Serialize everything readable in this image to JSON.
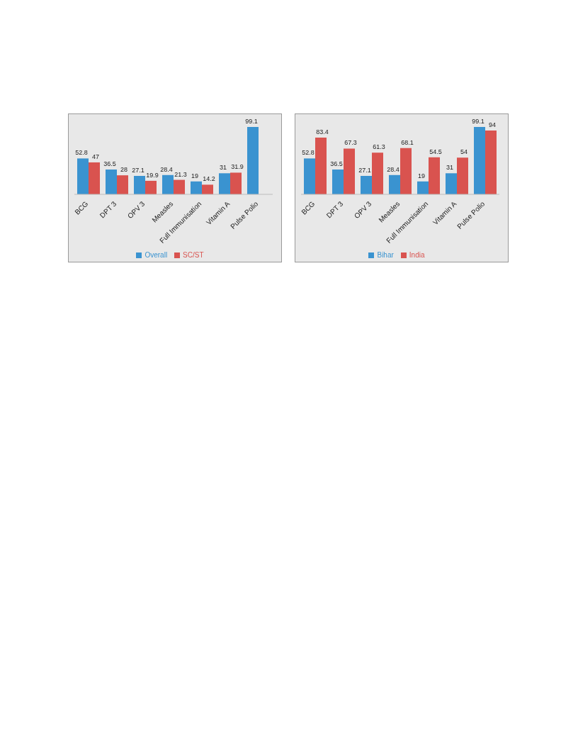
{
  "chart_data": [
    {
      "type": "bar",
      "categories": [
        "BCG",
        "DPT 3",
        "OPV 3",
        "Measles",
        "Full Immunisation",
        "Vitamin A",
        "Pulse Polio"
      ],
      "series": [
        {
          "name": "Overall",
          "color": "#3a93d0",
          "values": [
            52.8,
            36.5,
            27.1,
            28.4,
            19,
            31,
            99.1
          ]
        },
        {
          "name": "SC/ST",
          "color": "#d9534f",
          "values": [
            47,
            28,
            19.9,
            21.3,
            14.2,
            31.9,
            null
          ]
        }
      ],
      "data_labels": true,
      "legend": "bottom",
      "grid": false
    },
    {
      "type": "bar",
      "categories": [
        "BCG",
        "DPT 3",
        "OPV 3",
        "Measles",
        "Full Immunisation",
        "Vitamin A",
        "Pulse Polio"
      ],
      "series": [
        {
          "name": "Bihar",
          "color": "#3a93d0",
          "values": [
            52.8,
            36.5,
            27.1,
            28.4,
            19,
            31,
            99.1
          ]
        },
        {
          "name": "India",
          "color": "#d9534f",
          "values": [
            83.4,
            67.3,
            61.3,
            68.1,
            54.5,
            54,
            94
          ]
        }
      ],
      "data_labels": true,
      "legend": "bottom",
      "grid": false
    }
  ]
}
